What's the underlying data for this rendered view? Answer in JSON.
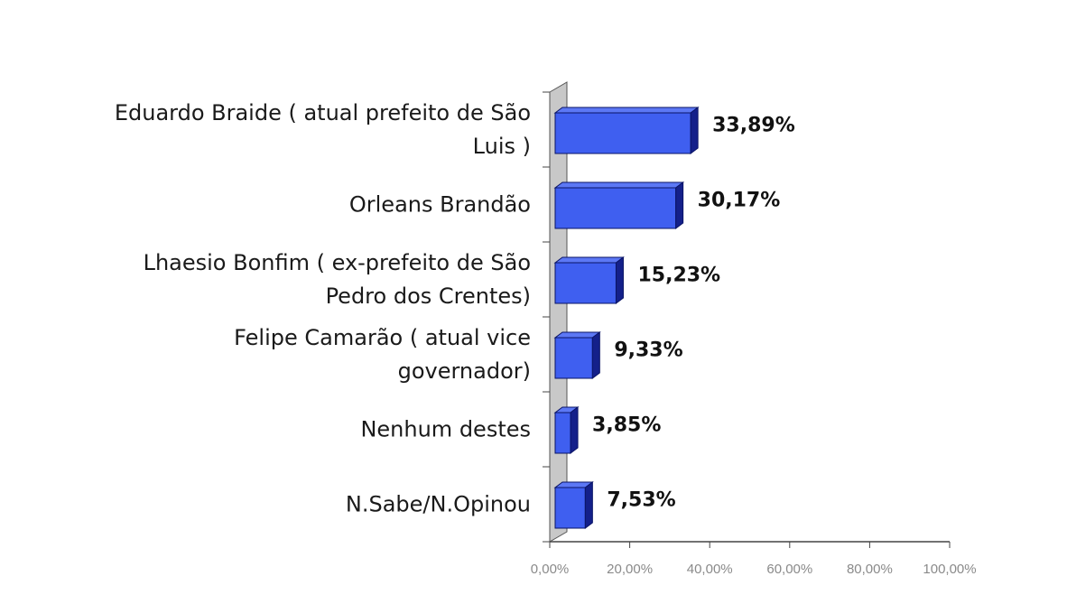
{
  "chart_data": {
    "type": "bar",
    "orientation": "horizontal",
    "categories": [
      [
        "Eduardo Braide ( atual prefeito de São",
        "Luis )"
      ],
      [
        "Orleans Brandão"
      ],
      [
        "Lhaesio Bonfim ( ex-prefeito de São",
        "Pedro dos Crentes)"
      ],
      [
        "Felipe Camarão ( atual vice",
        "governador)"
      ],
      [
        "Nenhum destes"
      ],
      [
        "N.Sabe/N.Opinou"
      ]
    ],
    "values": [
      33.89,
      30.17,
      15.23,
      9.33,
      3.85,
      7.53
    ],
    "value_labels": [
      "33,89%",
      "30,17%",
      "15,23%",
      "9,33%",
      "3,85%",
      "7,53%"
    ],
    "x_ticks": [
      "0,00%",
      "20,00%",
      "40,00%",
      "60,00%",
      "80,00%",
      "100,00%"
    ],
    "xlim": [
      0,
      100
    ],
    "grid": false,
    "style": "3d",
    "bar_color": "#3f5ff0",
    "bar_side_color": "#14208a",
    "bar_top_color": "#5c78f5",
    "wall_color": "#c8c8c8"
  }
}
